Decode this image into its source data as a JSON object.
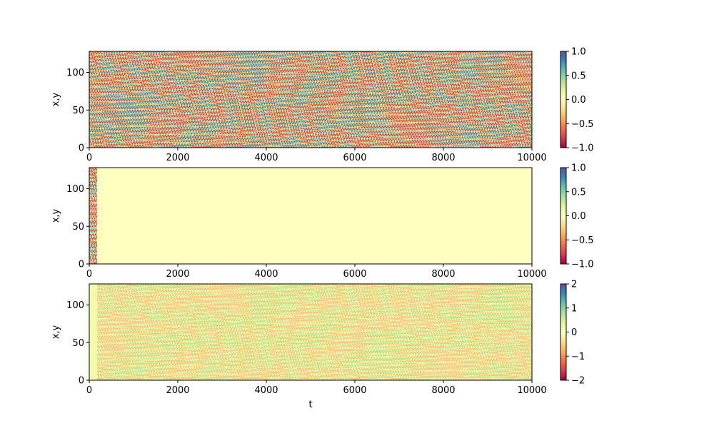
{
  "chart_data": [
    {
      "type": "heatmap",
      "title": "",
      "xlabel": "",
      "ylabel": "x,y",
      "xlim": [
        0,
        10000
      ],
      "ylim": [
        0,
        128
      ],
      "xticks": [
        0,
        2000,
        4000,
        6000,
        8000,
        10000
      ],
      "yticks": [
        0,
        50,
        100
      ],
      "colorbar": {
        "range": [
          -1,
          1
        ],
        "ticks": [
          -1.0,
          -0.5,
          0.0,
          0.5,
          1.0
        ],
        "tick_labels": [
          "−1.0",
          "−0.5",
          "0.0",
          "0.5",
          "1.0"
        ],
        "colormap": "Spectral"
      },
      "pattern": {
        "kind": "oscillating",
        "start_t": 0,
        "amplitude": 1.0
      }
    },
    {
      "type": "heatmap",
      "title": "",
      "xlabel": "",
      "ylabel": "x,y",
      "xlim": [
        0,
        10000
      ],
      "ylim": [
        0,
        128
      ],
      "xticks": [
        0,
        2000,
        4000,
        6000,
        8000,
        10000
      ],
      "yticks": [
        0,
        50,
        100
      ],
      "colorbar": {
        "range": [
          -1,
          1
        ],
        "ticks": [
          -1.0,
          -0.5,
          0.0,
          0.5,
          1.0
        ],
        "tick_labels": [
          "−1.0",
          "−0.5",
          "0.0",
          "0.5",
          "1.0"
        ],
        "colormap": "Spectral"
      },
      "pattern": {
        "kind": "oscillating_then_zero",
        "active_until_t": 180,
        "value_after": 0.0
      }
    },
    {
      "type": "heatmap",
      "title": "",
      "xlabel": "t",
      "ylabel": "x,y",
      "xlim": [
        0,
        10000
      ],
      "ylim": [
        0,
        128
      ],
      "xticks": [
        0,
        2000,
        4000,
        6000,
        8000,
        10000
      ],
      "yticks": [
        0,
        50,
        100
      ],
      "colorbar": {
        "range": [
          -2,
          2
        ],
        "ticks": [
          -2,
          -1,
          0,
          1,
          2
        ],
        "tick_labels": [
          "−2",
          "−1",
          "0",
          "1",
          "2"
        ],
        "colormap": "Spectral"
      },
      "pattern": {
        "kind": "zero_then_oscillating",
        "start_t": 180,
        "amplitude": 0.9
      }
    }
  ]
}
